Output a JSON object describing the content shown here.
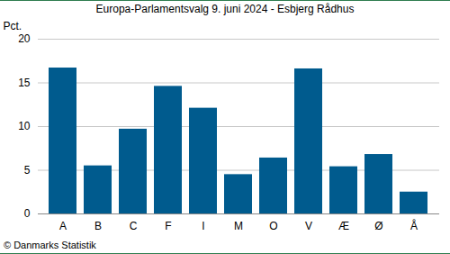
{
  "chart_data": {
    "type": "bar",
    "title": "Europa-Parlamentsvalg 9. juni 2024 - Esbjerg Rådhus",
    "y_label": "Pct.",
    "caption": "© Danmarks Statistik",
    "categories": [
      "A",
      "B",
      "C",
      "F",
      "I",
      "M",
      "O",
      "V",
      "Æ",
      "Ø",
      "Å"
    ],
    "values": [
      16.7,
      5.5,
      9.7,
      14.6,
      12.1,
      4.5,
      6.4,
      16.6,
      5.4,
      6.8,
      2.5
    ],
    "color": "#005b8e",
    "ylim": [
      0,
      20
    ],
    "yticks": [
      0,
      5,
      10,
      15,
      20
    ],
    "grid": true
  }
}
